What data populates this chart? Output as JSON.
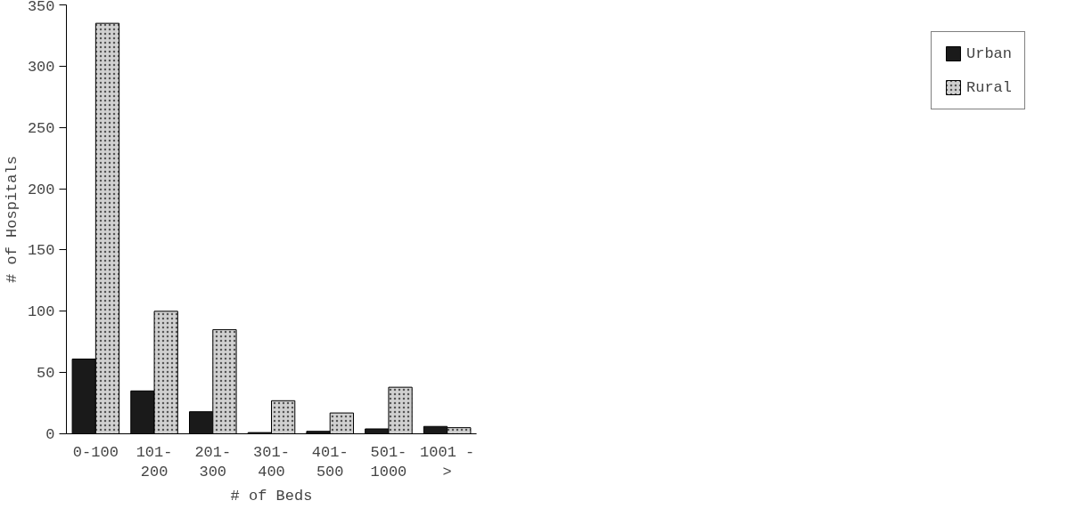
{
  "chart_data": {
    "type": "bar",
    "xlabel": "# of Beds",
    "ylabel": "# of Hospitals",
    "categories": [
      "0-100",
      "101-\n200",
      "201-\n300",
      "301-\n400",
      "401-\n500",
      "501-\n1000",
      "1001 -\n>"
    ],
    "series": [
      {
        "name": "Urban",
        "color": "#1a1a1a",
        "values": [
          61,
          35,
          18,
          1,
          2,
          4,
          6
        ]
      },
      {
        "name": "Rural",
        "color": "#d0d0d0",
        "values": [
          335,
          100,
          85,
          27,
          17,
          38,
          5
        ]
      }
    ],
    "ylim": [
      0,
      350
    ],
    "yticks": [
      0,
      50,
      100,
      150,
      200,
      250,
      300,
      350
    ],
    "grid": false,
    "legend": "right"
  }
}
